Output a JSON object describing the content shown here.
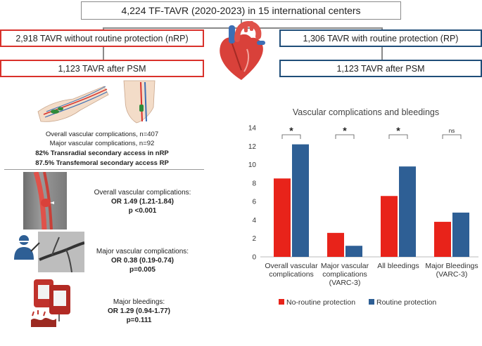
{
  "flow": {
    "top_box": "4,224 TF-TAVR (2020-2023) in 15 international centers",
    "nrp_box": "2,918 TAVR without routine protection (nRP)",
    "rp_box": "1,306 TAVR  with routine protection (RP)",
    "nrp_psm_box": "1,123 TAVR after  PSM",
    "rp_psm_box": "1,123 TAVR after PSM"
  },
  "summary": {
    "line1": "Overall vascular complications, n=407",
    "line2": "Major vascular complications, n=92",
    "line3": "82% Transradial secondary access in nRP",
    "line4": "87.5% Transfemoral secondary access RP"
  },
  "outcomes": [
    {
      "title": "Overall vascular complications:",
      "or": "OR 1.49 (1.21-1.84)",
      "p": "p <0.001"
    },
    {
      "title": "Major vascular complications:",
      "or": "OR 0.38 (0.19-0.74)",
      "p": "p=0.005"
    },
    {
      "title": "Major bleedings:",
      "or": "OR 1.29 (0.94-1.77)",
      "p": "p=0.111"
    }
  ],
  "chart_data": {
    "type": "bar",
    "title": "Vascular complications and bleedings",
    "categories": [
      [
        "Overall vascular",
        "complications"
      ],
      [
        "Major vascular",
        "complications",
        "(VARC-3)"
      ],
      [
        "All bleedings"
      ],
      [
        "Major Bleedings",
        "(VARC-3)"
      ]
    ],
    "series": [
      {
        "name": "No-routine protection",
        "color": "#e8231a",
        "values": [
          8.5,
          2.6,
          6.6,
          3.8
        ]
      },
      {
        "name": "Routine protection",
        "color": "#2e5f95",
        "values": [
          12.2,
          1.2,
          9.8,
          4.8
        ]
      }
    ],
    "significance": [
      "*",
      "*",
      "*",
      "ns"
    ],
    "ylim": [
      0,
      14
    ],
    "yticks": [
      "0",
      "2",
      "4",
      "6",
      "8",
      "10",
      "12",
      "14"
    ],
    "xlabel": "",
    "ylabel": ""
  }
}
